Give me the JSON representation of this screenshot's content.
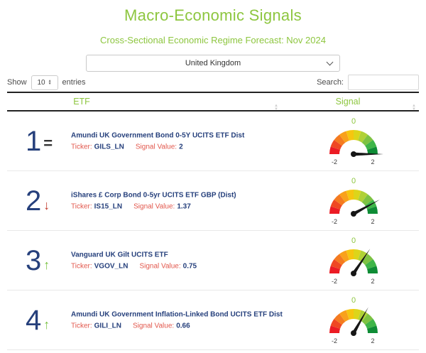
{
  "header": {
    "title": "Macro-Economic Signals",
    "subtitle": "Cross-Sectional Economic Regime Forecast: Nov 2024"
  },
  "filters": {
    "country_selected": "United Kingdom",
    "show_label": "Show",
    "page_size": "10",
    "entries_label": "entries",
    "search_label": "Search:",
    "search_value": ""
  },
  "table": {
    "columns": [
      {
        "label": "ETF"
      },
      {
        "label": "Signal"
      }
    ],
    "labels": {
      "ticker": "Ticker:",
      "signal_value": "Signal Value:"
    },
    "rows": [
      {
        "rank": "1",
        "change_icon": "=",
        "change_dir": "same",
        "change_color": "#333333",
        "name": "Amundi UK Government Bond 0-5Y UCITS ETF Dist",
        "ticker": "GILS_LN",
        "signal_value_text": "2",
        "signal_value": 2
      },
      {
        "rank": "2",
        "change_icon": "↓",
        "change_dir": "down",
        "change_color": "#c0392b",
        "name": "iShares £ Corp Bond 0-5yr UCITS ETF GBP (Dist)",
        "ticker": "IS15_LN",
        "signal_value_text": "1.37",
        "signal_value": 1.37
      },
      {
        "rank": "3",
        "change_icon": "↑",
        "change_dir": "up",
        "change_color": "#7ac143",
        "name": "Vanguard UK Gilt UCITS ETF",
        "ticker": "VGOV_LN",
        "signal_value_text": "0.75",
        "signal_value": 0.75
      },
      {
        "rank": "4",
        "change_icon": "↑",
        "change_dir": "up",
        "change_color": "#7ac143",
        "name": "Amundi UK Government Inflation-Linked Bond UCITS ETF Dist",
        "ticker": "GILI_LN",
        "signal_value_text": "0.66",
        "signal_value": 0.66
      }
    ]
  },
  "gauge": {
    "type": "half-donut-gauge",
    "min": -2,
    "max": 2,
    "min_label": "-2",
    "max_label": "2",
    "top_label": "0",
    "top_label_color": "#8dc63f",
    "tick_label_color": "#3d3d3d",
    "needle_color": "#161616",
    "segment_colors": [
      "#ec1c24",
      "#ef4823",
      "#f47b20",
      "#f9a11b",
      "#f6c60f",
      "#dcd51a",
      "#b0d136",
      "#7dc242",
      "#3eb549",
      "#0e8c35"
    ]
  },
  "icons": {
    "sort_up": "▲",
    "sort_down": "▼",
    "spinner_up": "▲",
    "spinner_down": "▼"
  },
  "colors": {
    "brand_green": "#8dc63f",
    "navy": "#26407c",
    "label_red": "#e2574c",
    "rank_same": "#333333",
    "rank_down": "#c0392b",
    "rank_up": "#7ac143"
  }
}
